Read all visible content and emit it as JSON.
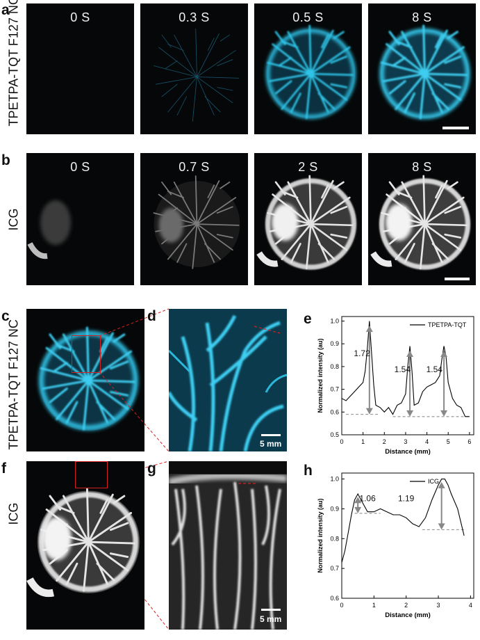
{
  "figure": {
    "panel_letters": {
      "a": "a",
      "b": "b",
      "c": "c",
      "d": "d",
      "e": "e",
      "f": "f",
      "g": "g",
      "h": "h"
    },
    "row_a": {
      "label": "TPETPA-TQT F127 NC",
      "times": [
        "0 S",
        "0.3 S",
        "0.5 S",
        "8 S"
      ]
    },
    "row_b": {
      "label": "ICG",
      "times": [
        "0 S",
        "0.7 S",
        "2 S",
        "8 S"
      ]
    },
    "panel_c": {
      "label": "TPETPA-TQT F127 NC"
    },
    "panel_d": {
      "scale_text": "5 mm"
    },
    "panel_f": {
      "label": "ICG"
    },
    "panel_g": {
      "scale_text": "5 mm"
    },
    "colors": {
      "nir_cyan": "#2fc4e8",
      "icg_gray": "#d9d9d9",
      "roi_red": "#d62020",
      "arrow_gray": "#8a8a8a"
    }
  },
  "chart_data": [
    {
      "panel": "e",
      "type": "line",
      "xlabel": "Distance (mm)",
      "ylabel": "Normalized intensity (au)",
      "xlim": [
        0,
        6.2
      ],
      "ylim": [
        0.5,
        1.02
      ],
      "xticks": [
        0,
        1,
        2,
        3,
        4,
        5,
        6
      ],
      "yticks": [
        0.5,
        0.6,
        0.7,
        0.8,
        0.9,
        1.0
      ],
      "ytick_labels": [
        "0.5",
        "0.6",
        "0.7",
        "0.8",
        "0.9",
        "1.0"
      ],
      "legend": "top-right",
      "series": [
        {
          "name": "TPETPA-TQT",
          "x": [
            0,
            0.2,
            0.4,
            0.6,
            0.8,
            1.0,
            1.1,
            1.2,
            1.3,
            1.4,
            1.5,
            1.6,
            1.8,
            2.0,
            2.2,
            2.4,
            2.6,
            2.8,
            3.0,
            3.1,
            3.2,
            3.3,
            3.4,
            3.6,
            3.8,
            4.0,
            4.2,
            4.4,
            4.6,
            4.7,
            4.8,
            4.9,
            5.0,
            5.2,
            5.4,
            5.6,
            5.8,
            6.0
          ],
          "y": [
            0.66,
            0.65,
            0.67,
            0.69,
            0.71,
            0.73,
            0.78,
            0.88,
            1.0,
            0.86,
            0.72,
            0.63,
            0.62,
            0.6,
            0.62,
            0.59,
            0.63,
            0.64,
            0.68,
            0.8,
            0.89,
            0.78,
            0.63,
            0.64,
            0.69,
            0.71,
            0.72,
            0.73,
            0.76,
            0.83,
            0.89,
            0.84,
            0.73,
            0.66,
            0.63,
            0.62,
            0.58,
            0.58
          ]
        }
      ],
      "baselines": [
        {
          "y": 0.59,
          "x0": 0.2,
          "x1": 1.7
        },
        {
          "y": 0.58,
          "x0": 2.4,
          "x1": 6.0
        }
      ],
      "arrows": [
        {
          "x": 1.3,
          "y_top": 0.98,
          "y_bottom": 0.59
        },
        {
          "x": 3.2,
          "y_top": 0.87,
          "y_bottom": 0.58
        },
        {
          "x": 4.8,
          "y_top": 0.87,
          "y_bottom": 0.58
        }
      ],
      "annotations": [
        {
          "text": "1.72",
          "x": 0.95,
          "y": 0.845
        },
        {
          "text": "1.54",
          "x": 2.85,
          "y": 0.775
        },
        {
          "text": "1.54",
          "x": 4.35,
          "y": 0.775
        }
      ]
    },
    {
      "panel": "h",
      "type": "line",
      "xlabel": "Distance (mm)",
      "ylabel": "Normalized intensity (au)",
      "xlim": [
        0,
        4.1
      ],
      "ylim": [
        0.6,
        1.02
      ],
      "xticks": [
        0,
        1,
        2,
        3,
        4
      ],
      "yticks": [
        0.6,
        0.7,
        0.8,
        0.9,
        1.0
      ],
      "ytick_labels": [
        "0.6",
        "0.7",
        "0.8",
        "0.9",
        "1.0"
      ],
      "legend": "top-right",
      "series": [
        {
          "name": "ICG",
          "x": [
            0,
            0.1,
            0.2,
            0.3,
            0.4,
            0.5,
            0.6,
            0.7,
            0.8,
            0.9,
            1.0,
            1.2,
            1.4,
            1.6,
            1.8,
            2.0,
            2.2,
            2.4,
            2.6,
            2.8,
            3.0,
            3.1,
            3.2,
            3.3,
            3.4,
            3.6,
            3.8
          ],
          "y": [
            0.72,
            0.76,
            0.82,
            0.88,
            0.93,
            0.95,
            0.93,
            0.91,
            0.89,
            0.89,
            0.89,
            0.9,
            0.89,
            0.88,
            0.88,
            0.87,
            0.85,
            0.84,
            0.87,
            0.93,
            0.98,
            1.0,
            1.0,
            0.98,
            0.95,
            0.9,
            0.81
          ]
        }
      ],
      "baselines": [
        {
          "y": 0.885,
          "x0": 0.4,
          "x1": 1.2
        },
        {
          "y": 0.83,
          "x0": 2.5,
          "x1": 3.8
        }
      ],
      "arrows": [
        {
          "x": 0.5,
          "y_top": 0.94,
          "y_bottom": 0.885
        },
        {
          "x": 3.1,
          "y_top": 0.99,
          "y_bottom": 0.83
        }
      ],
      "annotations": [
        {
          "text": "1.06",
          "x": 0.8,
          "y": 0.925
        },
        {
          "text": "1.19",
          "x": 2.0,
          "y": 0.925
        }
      ]
    }
  ]
}
